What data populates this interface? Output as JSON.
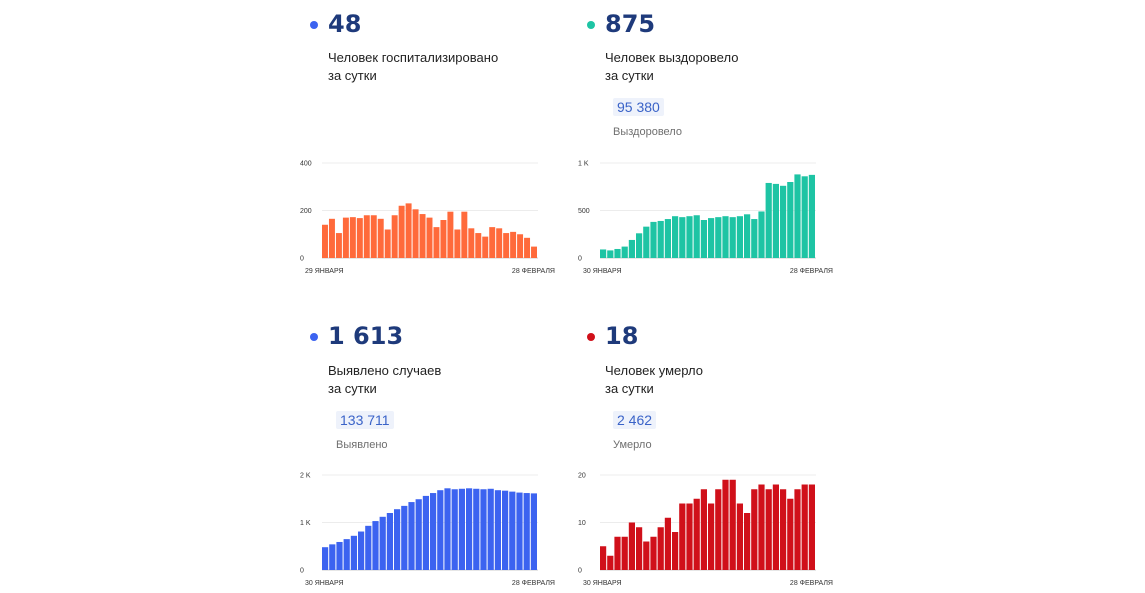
{
  "colors": {
    "hospitalized": "#ff6a3b",
    "recovered": "#1ec4a4",
    "detected": "#3c63f0",
    "deaths": "#d0101a",
    "number": "#1e3a7b"
  },
  "panels": [
    {
      "key": "hospitalized",
      "number": "48",
      "desc_line1": "Человек госпитализировано",
      "desc_line2": "за сутки",
      "total": "",
      "total_label": ""
    },
    {
      "key": "recovered",
      "number": "875",
      "desc_line1": "Человек выздоровело",
      "desc_line2": "за сутки",
      "total": "95 380",
      "total_label": "Выздоровело"
    },
    {
      "key": "detected",
      "number": "1 613",
      "desc_line1": "Выявлено случаев",
      "desc_line2": "за сутки",
      "total": "133 711",
      "total_label": "Выявлено"
    },
    {
      "key": "deaths",
      "number": "18",
      "desc_line1": "Человек умерло",
      "desc_line2": "за сутки",
      "total": "2 462",
      "total_label": "Умерло"
    }
  ],
  "chart_data": [
    {
      "type": "bar",
      "title": "",
      "xlabel": "",
      "ylabel": "",
      "x_start_label": "29 ЯНВАРЯ",
      "x_end_label": "28 ФЕВРАЛЯ",
      "yticks": [
        "0",
        "200",
        "400"
      ],
      "ylim": [
        0,
        400
      ],
      "grid": true,
      "color": "#ff6a3b",
      "values": [
        140,
        165,
        105,
        170,
        172,
        168,
        180,
        180,
        165,
        120,
        180,
        220,
        230,
        205,
        185,
        170,
        130,
        160,
        195,
        120,
        195,
        125,
        105,
        90,
        130,
        125,
        105,
        110,
        100,
        85,
        48
      ]
    },
    {
      "type": "bar",
      "title": "",
      "xlabel": "",
      "ylabel": "",
      "x_start_label": "30 ЯНВАРЯ",
      "x_end_label": "28 ФЕВРАЛЯ",
      "yticks": [
        "0",
        "500",
        "1 K"
      ],
      "ylim": [
        0,
        1000
      ],
      "grid": true,
      "color": "#1ec4a4",
      "values": [
        90,
        80,
        95,
        120,
        190,
        260,
        330,
        380,
        390,
        410,
        440,
        430,
        440,
        450,
        400,
        420,
        430,
        440,
        430,
        440,
        460,
        410,
        490,
        790,
        780,
        760,
        800,
        880,
        860,
        875
      ]
    },
    {
      "type": "bar",
      "title": "",
      "xlabel": "",
      "ylabel": "",
      "x_start_label": "30 ЯНВАРЯ",
      "x_end_label": "28 ФЕВРАЛЯ",
      "yticks": [
        "0",
        "1 K",
        "2 K"
      ],
      "ylim": [
        0,
        2000
      ],
      "grid": true,
      "color": "#3c63f0",
      "values": [
        480,
        540,
        590,
        650,
        720,
        810,
        930,
        1030,
        1120,
        1200,
        1280,
        1350,
        1430,
        1490,
        1560,
        1620,
        1680,
        1720,
        1700,
        1710,
        1720,
        1710,
        1700,
        1710,
        1680,
        1670,
        1650,
        1630,
        1620,
        1613
      ]
    },
    {
      "type": "bar",
      "title": "",
      "xlabel": "",
      "ylabel": "",
      "x_start_label": "30 ЯНВАРЯ",
      "x_end_label": "28 ФЕВРАЛЯ",
      "yticks": [
        "0",
        "10",
        "20"
      ],
      "ylim": [
        0,
        20
      ],
      "grid": true,
      "color": "#d0101a",
      "values": [
        5,
        3,
        7,
        7,
        10,
        9,
        6,
        7,
        9,
        11,
        8,
        14,
        14,
        15,
        17,
        14,
        17,
        19,
        19,
        14,
        12,
        17,
        18,
        17,
        18,
        17,
        15,
        17,
        18,
        18
      ]
    }
  ]
}
